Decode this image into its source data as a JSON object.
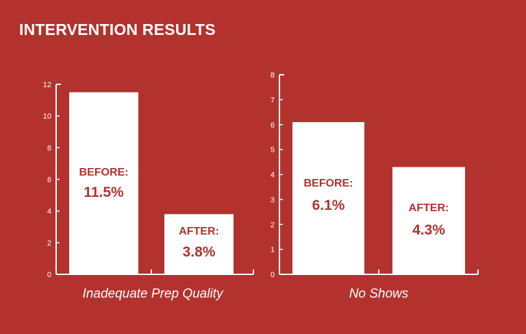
{
  "title": "INTERVENTION RESULTS",
  "colors": {
    "background": "#b3322e",
    "bar": "#ffffff",
    "axis": "#ffffff",
    "label_text": "#b3322e"
  },
  "chart_data": [
    {
      "type": "bar",
      "xlabel": "Inadequate Prep Quality",
      "ylabel": "",
      "ylim": [
        0,
        12
      ],
      "yticks": [
        0,
        2,
        4,
        6,
        8,
        10,
        12
      ],
      "grid": false,
      "categories": [
        "BEFORE:",
        "AFTER:"
      ],
      "values": [
        11.5,
        3.8
      ],
      "data_labels": [
        "11.5%",
        "3.8%"
      ]
    },
    {
      "type": "bar",
      "xlabel": "No Shows",
      "ylabel": "",
      "ylim": [
        0,
        8
      ],
      "yticks": [
        0,
        1,
        2,
        3,
        4,
        5,
        6,
        7,
        8
      ],
      "grid": false,
      "categories": [
        "BEFORE:",
        "AFTER:"
      ],
      "values": [
        6.1,
        4.3
      ],
      "data_labels": [
        "6.1%",
        "4.3%"
      ]
    }
  ]
}
